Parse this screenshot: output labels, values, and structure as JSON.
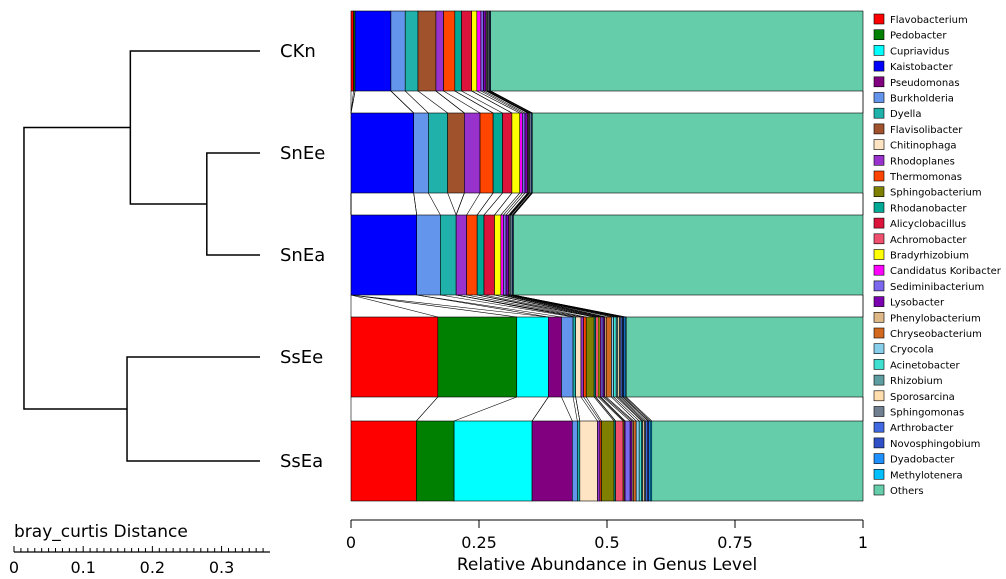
{
  "chart_data": {
    "type": "bar",
    "orientation": "horizontal",
    "stacked": true,
    "xlabel": "Relative Abundance in Genus Level",
    "xlim": [
      0,
      1
    ],
    "xticks": [
      "0",
      "0.25",
      "0.5",
      "0.75",
      "1"
    ],
    "legend_placement": "right",
    "categories": [
      "CKn",
      "SnEe",
      "SnEa",
      "SsEe",
      "SsEa"
    ],
    "series": [
      {
        "name": "Flavobacterium",
        "color": "#ff0000",
        "values": [
          0.005,
          0.0,
          0.0,
          0.165,
          0.13
        ]
      },
      {
        "name": "Pedobacter",
        "color": "#008000",
        "values": [
          0.003,
          0.0,
          0.0,
          0.15,
          0.075
        ]
      },
      {
        "name": "Cupriavidus",
        "color": "#00ffff",
        "values": [
          0.0,
          0.0,
          0.0,
          0.06,
          0.155
        ]
      },
      {
        "name": "Kaistobacter",
        "color": "#0000ff",
        "values": [
          0.07,
          0.12,
          0.125,
          0.0,
          0.0
        ]
      },
      {
        "name": "Pseudomonas",
        "color": "#800080",
        "values": [
          0.0,
          0.0,
          0.0,
          0.025,
          0.08
        ]
      },
      {
        "name": "Burkholderia",
        "color": "#6495ed",
        "values": [
          0.028,
          0.028,
          0.045,
          0.022,
          0.01
        ]
      },
      {
        "name": "Dyella",
        "color": "#20b2aa",
        "values": [
          0.025,
          0.037,
          0.03,
          0.005,
          0.005
        ]
      },
      {
        "name": "Flavisolibacter",
        "color": "#a0522d",
        "values": [
          0.035,
          0.032,
          0.0,
          0.0,
          0.0
        ]
      },
      {
        "name": "Chitinophaga",
        "color": "#ffe4c4",
        "values": [
          0.0,
          0.0,
          0.0,
          0.01,
          0.035
        ]
      },
      {
        "name": "Rhodoplanes",
        "color": "#9932cc",
        "values": [
          0.015,
          0.03,
          0.02,
          0.005,
          0.005
        ]
      },
      {
        "name": "Thermomonas",
        "color": "#ff4500",
        "values": [
          0.022,
          0.025,
          0.02,
          0.005,
          0.003
        ]
      },
      {
        "name": "Sphingobacterium",
        "color": "#808000",
        "values": [
          0.0,
          0.0,
          0.0,
          0.015,
          0.025
        ]
      },
      {
        "name": "Rhodanobacter",
        "color": "#00a896",
        "values": [
          0.013,
          0.018,
          0.013,
          0.003,
          0.003
        ]
      },
      {
        "name": "Alicyclobacillus",
        "color": "#dc143c",
        "values": [
          0.02,
          0.018,
          0.02,
          0.0,
          0.0
        ]
      },
      {
        "name": "Achromobacter",
        "color": "#f0506e",
        "values": [
          0.0,
          0.0,
          0.0,
          0.005,
          0.015
        ]
      },
      {
        "name": "Bradyrhizobium",
        "color": "#ffff00",
        "values": [
          0.01,
          0.015,
          0.012,
          0.003,
          0.002
        ]
      },
      {
        "name": "Candidatus Koribacter",
        "color": "#ff00ff",
        "values": [
          0.008,
          0.005,
          0.005,
          0.002,
          0.002
        ]
      },
      {
        "name": "Sediminibacterium",
        "color": "#7b68ee",
        "values": [
          0.005,
          0.005,
          0.005,
          0.004,
          0.01
        ]
      },
      {
        "name": "Lysobacter",
        "color": "#7b00b0",
        "values": [
          0.005,
          0.005,
          0.005,
          0.003,
          0.004
        ]
      },
      {
        "name": "Phenylobacterium",
        "color": "#deb887",
        "values": [
          0.002,
          0.002,
          0.002,
          0.003,
          0.003
        ]
      },
      {
        "name": "Chryseobacterium",
        "color": "#d2691e",
        "values": [
          0.0,
          0.0,
          0.0,
          0.01,
          0.005
        ]
      },
      {
        "name": "Cryocola",
        "color": "#87ceeb",
        "values": [
          0.0,
          0.0,
          0.0,
          0.004,
          0.006
        ]
      },
      {
        "name": "Acinetobacter",
        "color": "#40e0d0",
        "values": [
          0.0,
          0.0,
          0.0,
          0.005,
          0.005
        ]
      },
      {
        "name": "Rhizobium",
        "color": "#5f9ea0",
        "values": [
          0.002,
          0.002,
          0.002,
          0.003,
          0.002
        ]
      },
      {
        "name": "Sporosarcina",
        "color": "#ffdead",
        "values": [
          0.0,
          0.0,
          0.0,
          0.003,
          0.003
        ]
      },
      {
        "name": "Sphingomonas",
        "color": "#708090",
        "values": [
          0.003,
          0.003,
          0.003,
          0.003,
          0.003
        ]
      },
      {
        "name": "Arthrobacter",
        "color": "#4169e1",
        "values": [
          0.0,
          0.0,
          0.0,
          0.003,
          0.004
        ]
      },
      {
        "name": "Novosphingobium",
        "color": "#3050c8",
        "values": [
          0.002,
          0.002,
          0.002,
          0.002,
          0.002
        ]
      },
      {
        "name": "Dyadobacter",
        "color": "#1e90ff",
        "values": [
          0.0,
          0.0,
          0.0,
          0.003,
          0.003
        ]
      },
      {
        "name": "Methylotenera",
        "color": "#00bfff",
        "values": [
          0.0,
          0.0,
          0.0,
          0.002,
          0.003
        ]
      },
      {
        "name": "Others",
        "color": "#66cdaa",
        "values": [
          0.728,
          0.633,
          0.665,
          0.45,
          0.42
        ]
      }
    ],
    "dendrogram": {
      "scale_label": "bray_curtis Distance",
      "scale_ticks": [
        "0",
        "0.1",
        "0.2",
        "0.3"
      ],
      "scale_max": 0.37,
      "leaves": [
        "CKn",
        "SnEe",
        "SnEa",
        "SsEe",
        "SsEa"
      ],
      "merges": [
        {
          "a": "SnEe",
          "b": "SnEa",
          "height": 0.08
        },
        {
          "a": "CKn",
          "b": "SnEe+SnEa",
          "height": 0.195
        },
        {
          "a": "SsEe",
          "b": "SsEa",
          "height": 0.2
        },
        {
          "a": "CKn+SnEe+SnEa",
          "b": "SsEe+SsEa",
          "height": 0.355
        }
      ]
    }
  }
}
